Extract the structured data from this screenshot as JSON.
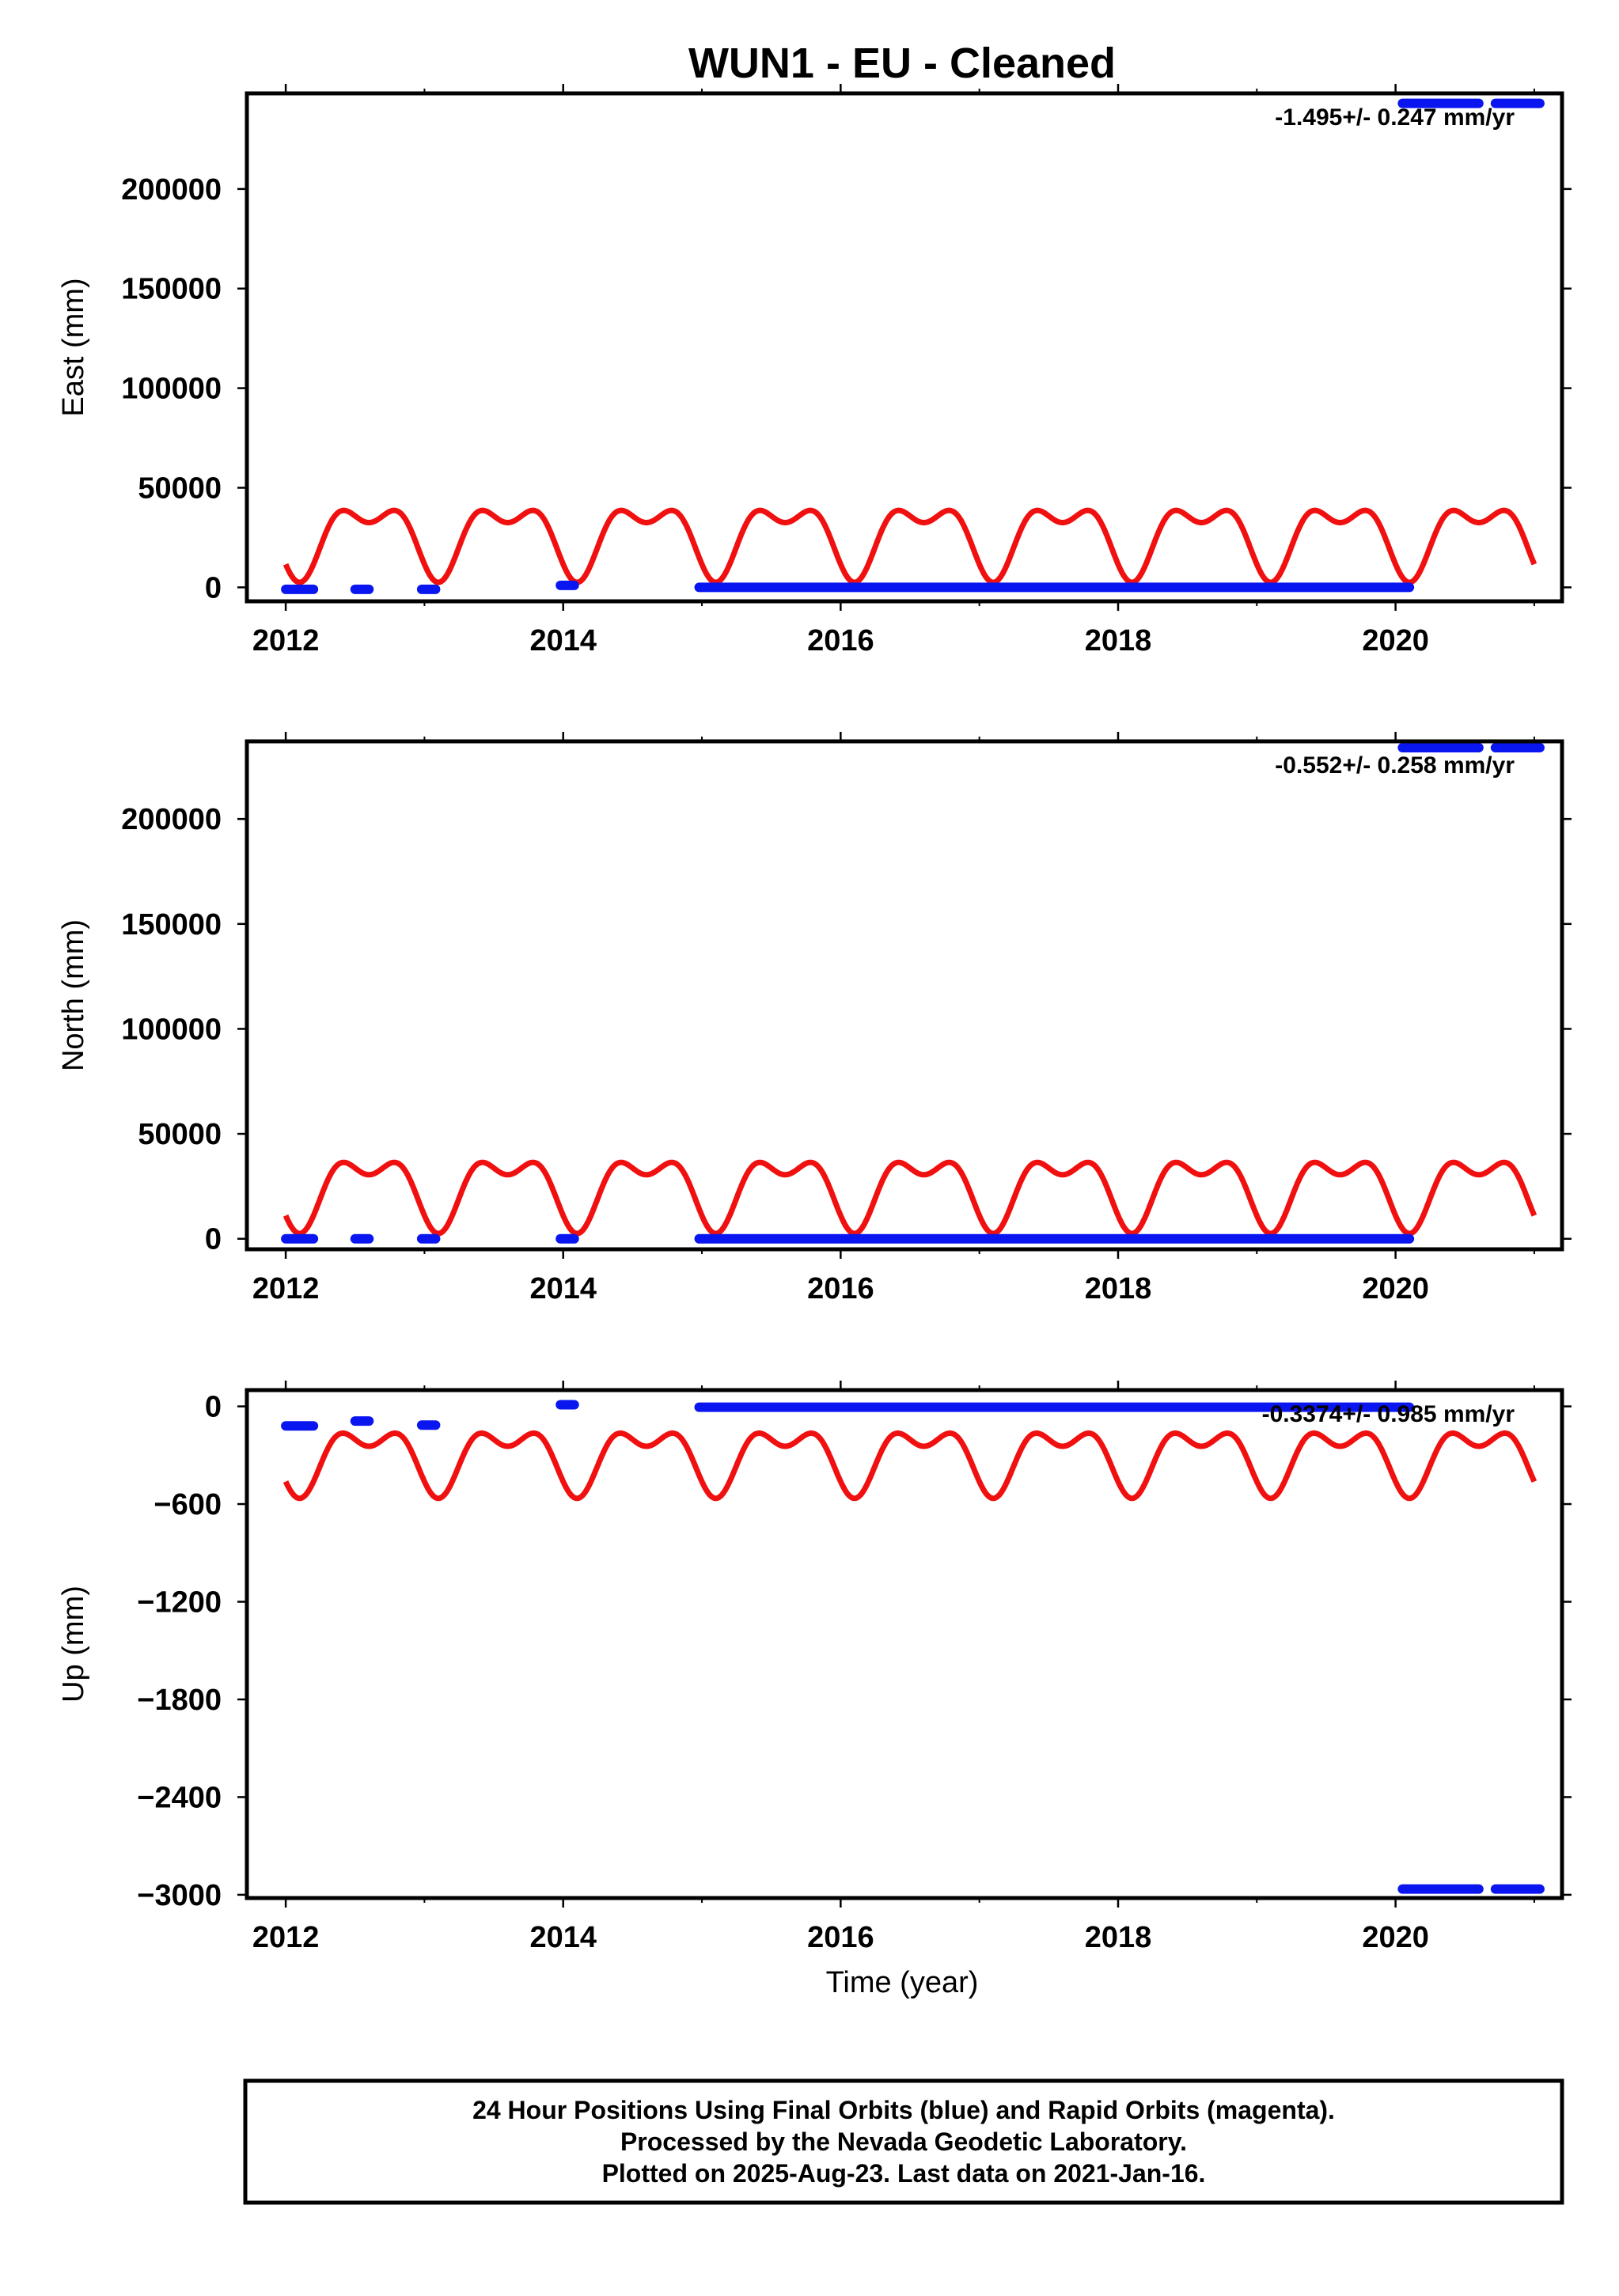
{
  "title": "WUN1  - EU - Cleaned",
  "x_label": "Time (year)",
  "footer": {
    "line1": "24 Hour Positions Using Final Orbits (blue) and Rapid Orbits (magenta).",
    "line2": "Processed by the Nevada Geodetic Laboratory.",
    "line3": "Plotted on 2025-Aug-23. Last data on 2021-Jan-16."
  },
  "colors": {
    "final": "#0a16f0",
    "model": "#f01010",
    "frame": "#000000"
  },
  "chart_data": [
    {
      "type": "scatter",
      "panel": "east",
      "ylabel": "East (mm)",
      "rate_text": "-1.495+/- 0.247 mm/yr",
      "xlim": [
        2011.72,
        2021.2
      ],
      "ylim": [
        -7000,
        248000
      ],
      "x_ticks": [
        2012,
        2014,
        2016,
        2018,
        2020
      ],
      "y_ticks": [
        0,
        50000,
        100000,
        150000,
        200000
      ],
      "series": [
        {
          "role": "final_orbit_positions",
          "segments": [
            {
              "x0": 2012.0,
              "x1": 2012.2,
              "y": -1000
            },
            {
              "x0": 2012.5,
              "x1": 2012.6,
              "y": -1000
            },
            {
              "x0": 2012.98,
              "x1": 2013.08,
              "y": -1000
            },
            {
              "x0": 2013.98,
              "x1": 2014.08,
              "y": 1000
            },
            {
              "x0": 2014.98,
              "x1": 2020.1,
              "y": 0
            },
            {
              "x0": 2020.05,
              "x1": 2020.6,
              "y": 243000
            },
            {
              "x0": 2020.72,
              "x1": 2021.04,
              "y": 243000
            }
          ]
        },
        {
          "role": "seasonal_model",
          "mean": 26500,
          "annual_amplitude": 15000,
          "semiannual_amplitude": 9000,
          "x_range": [
            2012.0,
            2021.0
          ]
        }
      ]
    },
    {
      "type": "scatter",
      "panel": "north",
      "ylabel": "North (mm)",
      "rate_text": "-0.552+/- 0.258 mm/yr",
      "xlim": [
        2011.72,
        2021.2
      ],
      "ylim": [
        -5000,
        237000
      ],
      "x_ticks": [
        2012,
        2014,
        2016,
        2018,
        2020
      ],
      "y_ticks": [
        0,
        50000,
        100000,
        150000,
        200000
      ],
      "series": [
        {
          "role": "final_orbit_positions",
          "segments": [
            {
              "x0": 2012.0,
              "x1": 2012.2,
              "y": 0
            },
            {
              "x0": 2012.5,
              "x1": 2012.6,
              "y": 0
            },
            {
              "x0": 2012.98,
              "x1": 2013.08,
              "y": 0
            },
            {
              "x0": 2013.98,
              "x1": 2014.08,
              "y": 0
            },
            {
              "x0": 2014.98,
              "x1": 2020.1,
              "y": 0
            },
            {
              "x0": 2020.05,
              "x1": 2020.6,
              "y": 234000
            },
            {
              "x0": 2020.72,
              "x1": 2021.04,
              "y": 234000
            }
          ]
        },
        {
          "role": "seasonal_model",
          "mean": 25000,
          "annual_amplitude": 14000,
          "semiannual_amplitude": 8500,
          "x_range": [
            2012.0,
            2021.0
          ]
        }
      ]
    },
    {
      "type": "scatter",
      "panel": "up",
      "ylabel": "Up (mm)",
      "rate_text": "-0.3374+/- 0.985 mm/yr",
      "xlim": [
        2011.72,
        2021.2
      ],
      "ylim": [
        -3020,
        100
      ],
      "x_ticks": [
        2012,
        2014,
        2016,
        2018,
        2020
      ],
      "y_ticks": [
        0,
        -600,
        -1200,
        -1800,
        -2400,
        -3000
      ],
      "y_tick_labels": [
        "0",
        "−600",
        "−1200",
        "−1800",
        "−2400",
        "−3000"
      ],
      "series": [
        {
          "role": "final_orbit_positions",
          "segments": [
            {
              "x0": 2012.0,
              "x1": 2012.2,
              "y": -120
            },
            {
              "x0": 2012.5,
              "x1": 2012.6,
              "y": -90
            },
            {
              "x0": 2012.98,
              "x1": 2013.08,
              "y": -115
            },
            {
              "x0": 2013.98,
              "x1": 2014.08,
              "y": 10
            },
            {
              "x0": 2014.98,
              "x1": 2020.1,
              "y": -5
            },
            {
              "x0": 2020.05,
              "x1": 2020.6,
              "y": -2965
            },
            {
              "x0": 2020.72,
              "x1": 2021.04,
              "y": -2965
            }
          ]
        },
        {
          "role": "seasonal_model",
          "mean": -300,
          "annual_amplitude": 160,
          "semiannual_amplitude": 105,
          "x_range": [
            2012.0,
            2021.0
          ]
        }
      ]
    }
  ]
}
